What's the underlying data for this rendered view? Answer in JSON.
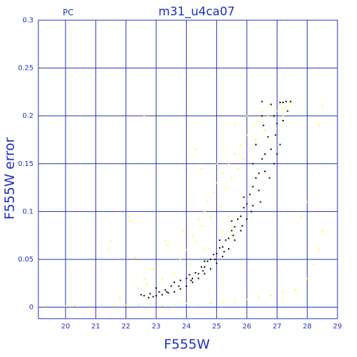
{
  "chart_data": {
    "type": "scatter",
    "title": "m31_u4ca07",
    "corner_label": "PC",
    "xlabel": "F555W",
    "ylabel": "F555W error",
    "xlim": [
      19.1,
      29.0
    ],
    "ylim": [
      -0.012,
      0.3
    ],
    "xticks": [
      20,
      21,
      22,
      23,
      24,
      25,
      26,
      27,
      28,
      29
    ],
    "yticks": [
      0,
      0.05,
      0.1,
      0.15,
      0.2,
      0.25,
      0.3
    ],
    "ytick_labels": [
      "0",
      "0.05",
      "0.1",
      "0.15",
      "0.2",
      "0.25",
      "0.3"
    ],
    "grid": true,
    "series": [
      {
        "color": "#000000",
        "points": [
          [
            22.75,
            0.01
          ],
          [
            22.9,
            0.011
          ],
          [
            23.0,
            0.012
          ],
          [
            23.2,
            0.013
          ],
          [
            23.4,
            0.015
          ],
          [
            23.6,
            0.016
          ],
          [
            23.8,
            0.019
          ],
          [
            24.0,
            0.022
          ],
          [
            24.2,
            0.026
          ],
          [
            24.4,
            0.03
          ],
          [
            24.6,
            0.035
          ],
          [
            24.8,
            0.04
          ],
          [
            25.0,
            0.046
          ],
          [
            25.2,
            0.053
          ],
          [
            25.4,
            0.061
          ],
          [
            25.6,
            0.07
          ],
          [
            25.8,
            0.08
          ],
          [
            26.0,
            0.092
          ],
          [
            26.2,
            0.106
          ],
          [
            26.4,
            0.122
          ],
          [
            26.6,
            0.142
          ],
          [
            26.8,
            0.165
          ],
          [
            27.0,
            0.192
          ],
          [
            27.2,
            0.214
          ],
          [
            23.5,
            0.022
          ],
          [
            23.8,
            0.028
          ],
          [
            24.0,
            0.03
          ],
          [
            24.3,
            0.036
          ],
          [
            24.5,
            0.042
          ],
          [
            24.7,
            0.048
          ],
          [
            24.9,
            0.055
          ],
          [
            25.1,
            0.062
          ],
          [
            25.3,
            0.07
          ],
          [
            25.5,
            0.08
          ],
          [
            25.7,
            0.092
          ],
          [
            25.9,
            0.104
          ],
          [
            26.1,
            0.118
          ],
          [
            26.3,
            0.135
          ],
          [
            26.5,
            0.155
          ],
          [
            26.7,
            0.178
          ],
          [
            26.9,
            0.2
          ],
          [
            27.1,
            0.214
          ],
          [
            27.3,
            0.215
          ],
          [
            27.45,
            0.215
          ],
          [
            26.5,
            0.215
          ],
          [
            26.8,
            0.212
          ],
          [
            26.95,
            0.18
          ],
          [
            27.1,
            0.17
          ],
          [
            27.2,
            0.195
          ],
          [
            27.35,
            0.205
          ],
          [
            26.6,
            0.16
          ],
          [
            26.4,
            0.14
          ],
          [
            26.2,
            0.126
          ],
          [
            26.0,
            0.108
          ],
          [
            25.8,
            0.095
          ],
          [
            25.6,
            0.084
          ],
          [
            25.4,
            0.072
          ],
          [
            25.2,
            0.063
          ],
          [
            25.0,
            0.056
          ],
          [
            24.8,
            0.05
          ],
          [
            24.6,
            0.042
          ],
          [
            24.4,
            0.035
          ],
          [
            24.2,
            0.03
          ],
          [
            23.3,
            0.018
          ],
          [
            23.1,
            0.016
          ],
          [
            22.8,
            0.014
          ],
          [
            22.6,
            0.012
          ],
          [
            22.5,
            0.013
          ],
          [
            23.0,
            0.02
          ],
          [
            23.6,
            0.026
          ],
          [
            24.1,
            0.034
          ],
          [
            24.6,
            0.048
          ],
          [
            25.1,
            0.07
          ],
          [
            25.5,
            0.09
          ],
          [
            25.9,
            0.115
          ],
          [
            26.2,
            0.15
          ],
          [
            26.3,
            0.17
          ],
          [
            26.5,
            0.2
          ],
          [
            26.55,
            0.19
          ],
          [
            26.9,
            0.15
          ],
          [
            27.0,
            0.16
          ],
          [
            26.75,
            0.135
          ],
          [
            26.45,
            0.11
          ],
          [
            26.15,
            0.1
          ],
          [
            25.85,
            0.085
          ],
          [
            25.55,
            0.075
          ],
          [
            25.25,
            0.058
          ],
          [
            24.95,
            0.05
          ],
          [
            24.55,
            0.038
          ],
          [
            24.15,
            0.028
          ],
          [
            23.75,
            0.022
          ],
          [
            23.35,
            0.016
          ]
        ]
      },
      {
        "color": "#ffff00",
        "points": [
          [
            19.4,
            0.001
          ],
          [
            20.0,
            0.001
          ],
          [
            20.3,
            0.002
          ],
          [
            20.8,
            0.001
          ],
          [
            21.2,
            0.002
          ],
          [
            21.6,
            0.001
          ],
          [
            22.0,
            0.002
          ],
          [
            22.4,
            0.002
          ],
          [
            22.8,
            0.003
          ],
          [
            23.2,
            0.002
          ],
          [
            23.6,
            0.003
          ],
          [
            24.0,
            0.004
          ],
          [
            24.4,
            0.003
          ],
          [
            24.8,
            0.004
          ],
          [
            25.2,
            0.005
          ],
          [
            25.6,
            0.006
          ],
          [
            26.0,
            0.008
          ],
          [
            26.4,
            0.01
          ],
          [
            26.8,
            0.012
          ],
          [
            27.2,
            0.015
          ],
          [
            27.6,
            0.018
          ],
          [
            28.0,
            0.03
          ],
          [
            28.2,
            0.045
          ],
          [
            28.4,
            0.06
          ],
          [
            28.5,
            0.08
          ],
          [
            28.4,
            0.19
          ],
          [
            28.5,
            0.21
          ],
          [
            27.8,
            0.095
          ],
          [
            28.0,
            0.11
          ],
          [
            22.6,
            0.2
          ],
          [
            21.4,
            0.06
          ],
          [
            21.5,
            0.07
          ],
          [
            22.1,
            0.095
          ],
          [
            22.2,
            0.09
          ],
          [
            22.3,
            0.052
          ],
          [
            22.6,
            0.03
          ],
          [
            22.9,
            0.04
          ],
          [
            23.3,
            0.07
          ],
          [
            23.4,
            0.065
          ],
          [
            23.8,
            0.05
          ],
          [
            24.0,
            0.06
          ],
          [
            24.2,
            0.075
          ],
          [
            24.3,
            0.068
          ],
          [
            24.4,
            0.092
          ],
          [
            24.5,
            0.085
          ],
          [
            24.6,
            0.1
          ],
          [
            24.7,
            0.11
          ],
          [
            24.8,
            0.095
          ],
          [
            24.9,
            0.12
          ],
          [
            25.0,
            0.13
          ],
          [
            25.1,
            0.105
          ],
          [
            25.2,
            0.14
          ],
          [
            25.3,
            0.125
          ],
          [
            25.4,
            0.15
          ],
          [
            25.5,
            0.135
          ],
          [
            25.6,
            0.16
          ],
          [
            25.7,
            0.145
          ],
          [
            25.8,
            0.17
          ],
          [
            25.9,
            0.155
          ],
          [
            26.0,
            0.18
          ],
          [
            26.1,
            0.165
          ],
          [
            26.2,
            0.19
          ],
          [
            26.3,
            0.175
          ],
          [
            26.4,
            0.195
          ],
          [
            26.5,
            0.205
          ],
          [
            26.6,
            0.185
          ],
          [
            26.7,
            0.2
          ],
          [
            26.8,
            0.21
          ],
          [
            26.9,
            0.198
          ],
          [
            27.0,
            0.205
          ],
          [
            27.1,
            0.212
          ],
          [
            27.2,
            0.2
          ],
          [
            27.3,
            0.208
          ],
          [
            27.4,
            0.214
          ],
          [
            24.3,
            0.165
          ],
          [
            24.5,
            0.145
          ],
          [
            25.0,
            0.15
          ],
          [
            25.6,
            0.19
          ],
          [
            26.0,
            0.2
          ],
          [
            23.9,
            0.08
          ],
          [
            24.1,
            0.045
          ],
          [
            24.6,
            0.06
          ],
          [
            25.2,
            0.08
          ],
          [
            25.4,
            0.095
          ],
          [
            25.5,
            0.075
          ],
          [
            23.6,
            0.035
          ],
          [
            23.2,
            0.03
          ],
          [
            22.7,
            0.024
          ],
          [
            22.4,
            0.02
          ],
          [
            21.8,
            0.01
          ]
        ]
      }
    ]
  }
}
